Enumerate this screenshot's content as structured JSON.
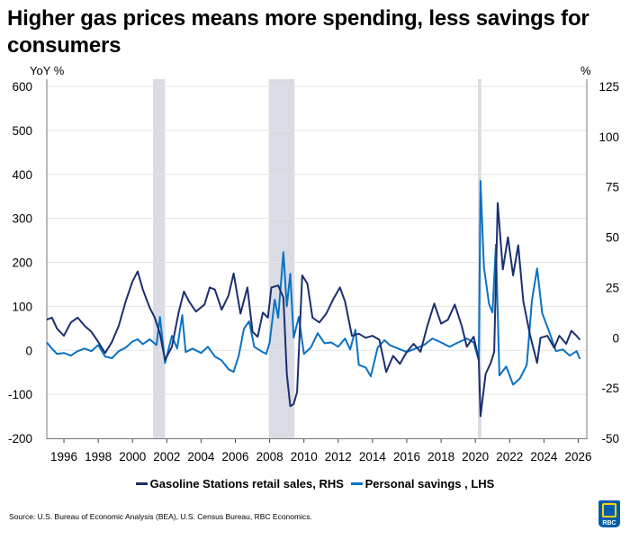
{
  "chart_data": {
    "type": "line",
    "title": "Higher gas prices means more spending, less savings for consumers",
    "left_axis": {
      "label": "YoY %",
      "range": [
        -200,
        600
      ],
      "ticks": [
        600,
        500,
        400,
        300,
        200,
        100,
        0,
        -100,
        -200
      ]
    },
    "right_axis": {
      "label": "%",
      "range": [
        -50,
        125
      ],
      "ticks": [
        125,
        100,
        75,
        50,
        25,
        0,
        -25,
        -50
      ]
    },
    "x_axis": {
      "range": [
        1995.0,
        2026.5
      ],
      "ticks": [
        1996,
        1998,
        2000,
        2002,
        2004,
        2006,
        2008,
        2010,
        2012,
        2014,
        2016,
        2018,
        2020,
        2022,
        2024,
        2026
      ]
    },
    "grid": true,
    "legend_position": "bottom",
    "recessions": [
      [
        2001.2,
        2001.9
      ],
      [
        2007.95,
        2009.45
      ],
      [
        2020.15,
        2020.35
      ]
    ],
    "series": [
      {
        "name": "Gasoline Stations retail sales, RHS",
        "axis": "right",
        "color": "#1b2f6e",
        "x": [
          1995.0,
          1995.3,
          1995.6,
          1996.0,
          1996.4,
          1996.8,
          1997.2,
          1997.6,
          1998.0,
          1998.4,
          1998.8,
          1999.2,
          1999.6,
          2000.0,
          2000.3,
          2000.6,
          2001.0,
          2001.3,
          2001.6,
          2001.9,
          2002.3,
          2002.7,
          2003.0,
          2003.3,
          2003.7,
          2004.2,
          2004.5,
          2004.8,
          2005.2,
          2005.6,
          2005.9,
          2006.3,
          2006.7,
          2007.0,
          2007.3,
          2007.6,
          2007.9,
          2008.1,
          2008.5,
          2008.8,
          2009.0,
          2009.2,
          2009.4,
          2009.6,
          2009.9,
          2010.2,
          2010.5,
          2010.9,
          2011.3,
          2011.7,
          2012.1,
          2012.4,
          2012.8,
          2013.2,
          2013.6,
          2014.0,
          2014.4,
          2014.8,
          2015.2,
          2015.6,
          2016.0,
          2016.4,
          2016.8,
          2017.2,
          2017.6,
          2018.0,
          2018.4,
          2018.8,
          2019.2,
          2019.5,
          2019.9,
          2020.2,
          2020.3,
          2020.6,
          2020.9,
          2021.1,
          2021.3,
          2021.6,
          2021.9,
          2022.2,
          2022.5,
          2022.8,
          2023.2,
          2023.6,
          2023.8,
          2024.2,
          2024.6,
          2024.9,
          2025.3,
          2025.6,
          2025.9,
          2026.1
        ],
        "values": [
          9,
          10,
          4.5,
          1,
          7.6,
          10,
          6,
          3,
          -2,
          -7.6,
          -2,
          6,
          18,
          28,
          33,
          24,
          15,
          10,
          2,
          -11,
          -4.5,
          13,
          23,
          18,
          13,
          16.5,
          25,
          24,
          14,
          21,
          32,
          12,
          25,
          3,
          0.5,
          12.5,
          10,
          25,
          26,
          20,
          -18,
          -34,
          -33,
          -27,
          31,
          27,
          10,
          7.6,
          12,
          19,
          25,
          18,
          1,
          2,
          0,
          1,
          -1,
          -17,
          -9,
          -13,
          -7,
          -3,
          -7,
          6,
          17,
          7,
          9,
          16.5,
          6,
          -4.5,
          0.5,
          -11,
          -39,
          -18,
          -12.5,
          -7,
          67,
          34,
          50,
          31,
          46,
          18,
          1,
          -12.5,
          0,
          1,
          -5,
          1,
          -3,
          3.5,
          1,
          -1
        ]
      },
      {
        "name": "Personal savings , LHS",
        "axis": "left",
        "color": "#0a72c4",
        "x": [
          1995.0,
          1995.3,
          1995.6,
          1996.0,
          1996.4,
          1996.8,
          1997.2,
          1997.6,
          1998.0,
          1998.4,
          1998.8,
          1999.2,
          1999.6,
          2000.0,
          2000.3,
          2000.6,
          2001.0,
          2001.4,
          2001.6,
          2001.9,
          2002.3,
          2002.6,
          2002.9,
          2003.1,
          2003.5,
          2004.0,
          2004.4,
          2004.8,
          2005.2,
          2005.6,
          2005.9,
          2006.2,
          2006.5,
          2006.8,
          2007.1,
          2007.5,
          2007.8,
          2008.0,
          2008.3,
          2008.5,
          2008.8,
          2009.0,
          2009.2,
          2009.4,
          2009.7,
          2010.0,
          2010.4,
          2010.8,
          2011.2,
          2011.6,
          2012.0,
          2012.4,
          2012.7,
          2013.0,
          2013.2,
          2013.6,
          2013.9,
          2014.3,
          2014.7,
          2015.0,
          2015.5,
          2016.0,
          2016.5,
          2017.0,
          2017.5,
          2018.0,
          2018.5,
          2019.0,
          2019.5,
          2019.9,
          2020.2,
          2020.3,
          2020.5,
          2020.8,
          2021.0,
          2021.2,
          2021.4,
          2021.8,
          2022.2,
          2022.6,
          2023.0,
          2023.3,
          2023.6,
          2023.9,
          2024.3,
          2024.7,
          2025.1,
          2025.5,
          2025.9,
          2026.1
        ],
        "values": [
          18,
          4,
          -8,
          -6,
          -12,
          -2,
          4,
          -2,
          12,
          -14,
          -18,
          -2,
          6,
          20,
          25,
          14,
          25,
          12,
          76,
          -29,
          33,
          4,
          80,
          -4,
          4,
          -6,
          8,
          -14,
          -23,
          -43,
          -49,
          -12,
          49,
          66,
          8,
          -2,
          -8,
          18,
          115,
          74,
          223,
          100,
          174,
          29,
          76,
          -8,
          6,
          39,
          16,
          18,
          8,
          27,
          2,
          47,
          -33,
          -39,
          -59,
          6,
          23,
          12,
          4,
          -4,
          4,
          12,
          27,
          18,
          8,
          18,
          27,
          18,
          -23,
          385,
          189,
          105,
          86,
          240,
          -57,
          -37,
          -78,
          -64,
          -33,
          113,
          186,
          84,
          43,
          -2,
          2,
          -12,
          -2,
          -20
        ]
      }
    ]
  },
  "header": {
    "title": "Higher gas prices means more spending, less savings for consumers"
  },
  "axes": {
    "left_unit": "YoY %",
    "right_unit": "%"
  },
  "legend": [
    {
      "label": "Gasoline Stations retail sales, RHS",
      "color": "#1b2f6e"
    },
    {
      "label": "Personal savings , LHS",
      "color": "#0a72c4"
    }
  ],
  "footer": {
    "source": "Source: U.S. Bureau of Economic Analysis (BEA), U.S. Census Bureau, RBC Economics.",
    "logo_text": "RBC"
  }
}
